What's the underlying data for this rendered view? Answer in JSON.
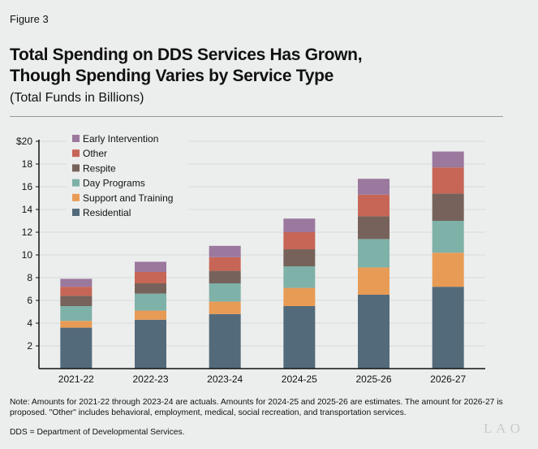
{
  "figure_label": "Figure 3",
  "title_line1": "Total Spending on DDS Services Has Grown,",
  "title_line2": "Though Spending Varies by Service Type",
  "subtitle": "(Total Funds in Billions)",
  "note": "Note: Amounts for 2021-22 through 2023-24 are actuals. Amounts for 2024-25 and 2025-26 are estimates. The amount for 2026-27 is proposed. \"Other\" includes behavioral, employment, medical, social recreation, and transportation services.",
  "abbreviation": "DDS = Department of Developmental Services.",
  "logo_text": "LAO",
  "chart_data": {
    "type": "bar",
    "stacked": true,
    "categories": [
      "2021-22",
      "2022-23",
      "2023-24",
      "2024-25",
      "2025-26",
      "2026-27"
    ],
    "series": [
      {
        "name": "Residential",
        "color": "#536a7a",
        "values": [
          3.6,
          4.3,
          4.8,
          5.5,
          6.5,
          7.2
        ]
      },
      {
        "name": "Support and Training",
        "color": "#e89b55",
        "values": [
          0.6,
          0.8,
          1.1,
          1.6,
          2.4,
          3.0
        ]
      },
      {
        "name": "Day Programs",
        "color": "#7eb1a8",
        "values": [
          1.3,
          1.5,
          1.6,
          1.9,
          2.5,
          2.8
        ]
      },
      {
        "name": "Respite",
        "color": "#77625b",
        "values": [
          0.9,
          0.9,
          1.1,
          1.5,
          2.0,
          2.4
        ]
      },
      {
        "name": "Other",
        "color": "#c76656",
        "values": [
          0.8,
          1.0,
          1.2,
          1.5,
          1.9,
          2.3
        ]
      },
      {
        "name": "Early Intervention",
        "color": "#9b789e",
        "values": [
          0.7,
          0.9,
          1.0,
          1.2,
          1.4,
          1.4
        ]
      }
    ],
    "yticks": [
      "2",
      "4",
      "6",
      "8",
      "10",
      "12",
      "14",
      "16",
      "18",
      "$20"
    ],
    "ylim": [
      0,
      20
    ],
    "grid": true,
    "legend": "top-left"
  }
}
